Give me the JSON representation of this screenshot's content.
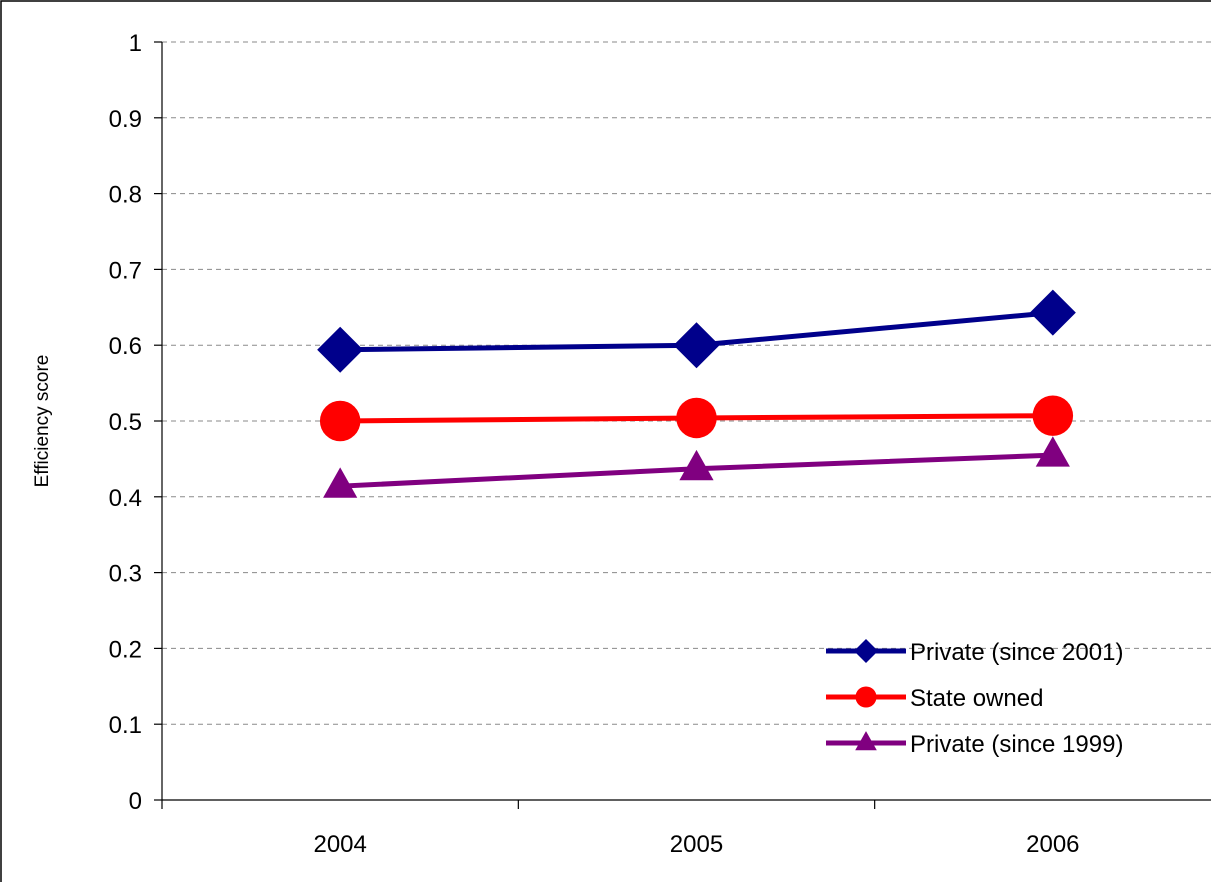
{
  "chart_data": {
    "type": "line",
    "title": "",
    "xlabel": "",
    "ylabel": "Efficiency score",
    "categories": [
      "2004",
      "2005",
      "2006"
    ],
    "ylim": [
      0,
      1
    ],
    "yticks": [
      0,
      0.1,
      0.2,
      0.3,
      0.4,
      0.5,
      0.6,
      0.7,
      0.8,
      0.9,
      1
    ],
    "ytick_labels": [
      "0",
      "0.1",
      "0.2",
      "0.3",
      "0.4",
      "0.5",
      "0.6",
      "0.7",
      "0.8",
      "0.9",
      "1"
    ],
    "grid": "horizontal dashed",
    "legend_position": "bottom-right",
    "series": [
      {
        "name": "Private (since 2001)",
        "values": [
          0.594,
          0.6,
          0.643
        ],
        "color": "#00008B",
        "marker": "diamond"
      },
      {
        "name": "State owned",
        "values": [
          0.5,
          0.504,
          0.507
        ],
        "color": "#FF0000",
        "marker": "circle"
      },
      {
        "name": "Private (since 1999)",
        "values": [
          0.414,
          0.437,
          0.455
        ],
        "color": "#800080",
        "marker": "triangle"
      }
    ]
  }
}
